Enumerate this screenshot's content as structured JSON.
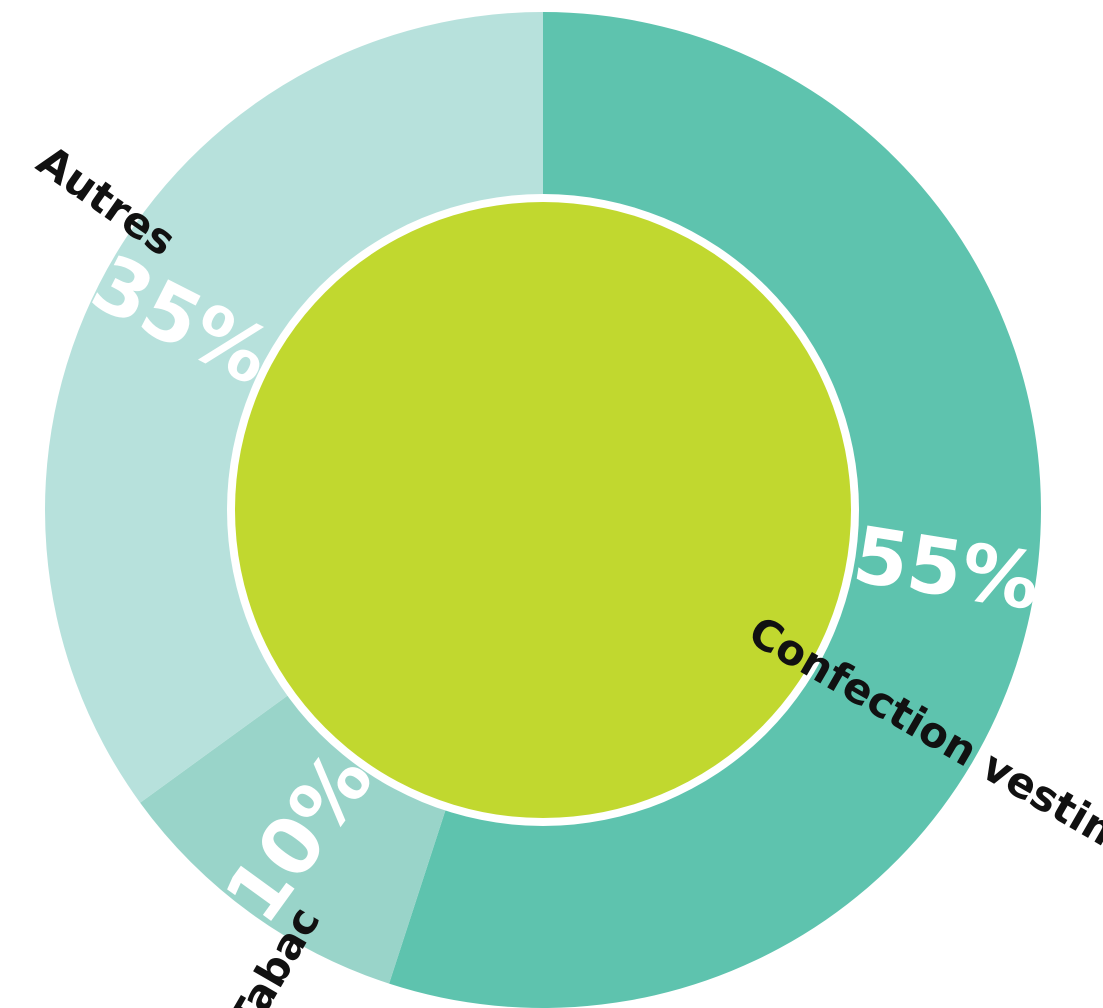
{
  "chart_data": {
    "type": "pie",
    "title": "",
    "labels": [
      "Confection vestimentaire",
      "Tabac",
      "Autres"
    ],
    "values": [
      55,
      10,
      35
    ],
    "value_labels": [
      "55%",
      "10%",
      "35%"
    ],
    "colors": [
      "#5ec3ae",
      "#99d4c9",
      "#b7e1dc"
    ],
    "center_color": "#c1d82f",
    "legend": "none",
    "grid": false
  }
}
